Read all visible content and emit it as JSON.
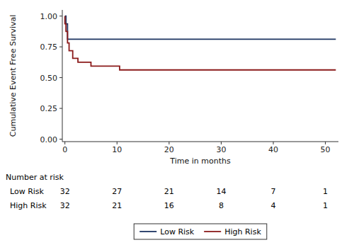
{
  "chart_data": {
    "type": "step",
    "x_label": "Time in months",
    "y_label": "Cumulative Event Free Survival",
    "series": [
      {
        "name": "Low Risk",
        "color": "#1c3461",
        "x": [
          0,
          0.2,
          0.5,
          1.0,
          52
        ],
        "values": [
          1.0,
          1.0,
          0.9375,
          0.8125,
          0.8125
        ]
      },
      {
        "name": "High Risk",
        "color": "#8b1a1a",
        "x": [
          0,
          0.2,
          0.5,
          0.8,
          1.5,
          2.5,
          5.0,
          8.0,
          10.5,
          12.0,
          52
        ],
        "values": [
          1.0,
          0.9375,
          0.875,
          0.78125,
          0.71875,
          0.65625,
          0.625,
          0.59375,
          0.59375,
          0.5625,
          0.5625
        ]
      }
    ],
    "xlim": [
      -0.5,
      52.5
    ],
    "ylim": [
      -0.02,
      1.05
    ],
    "xticks": [
      0,
      10,
      20,
      30,
      40,
      50
    ],
    "yticks": [
      {
        "value": 0.0,
        "label": "0.00"
      },
      {
        "value": 0.25,
        "label": "0.25"
      },
      {
        "value": 0.5,
        "label": "0.50"
      },
      {
        "value": 0.75,
        "label": "0.75"
      },
      {
        "value": 1.0,
        "label": "1.00"
      }
    ],
    "grid": false,
    "legend": "bottom",
    "risk_table": {
      "title": "Number at risk",
      "x": [
        0,
        10,
        20,
        30,
        40,
        50
      ],
      "rows": [
        {
          "label": "Low Risk",
          "values": [
            32,
            27,
            21,
            14,
            7,
            1
          ]
        },
        {
          "label": "High Risk",
          "values": [
            32,
            21,
            16,
            8,
            4,
            1
          ]
        }
      ]
    }
  }
}
